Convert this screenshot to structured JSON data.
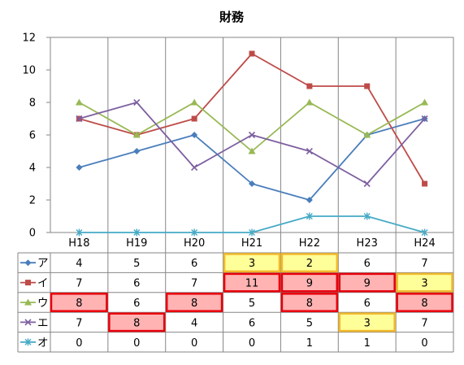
{
  "chart_data": {
    "type": "line",
    "title": "財務",
    "xlabel": "",
    "ylabel": "",
    "categories": [
      "H18",
      "H19",
      "H20",
      "H21",
      "H22",
      "H23",
      "H24"
    ],
    "ylim": [
      0,
      12
    ],
    "yticks": [
      0,
      2,
      4,
      6,
      8,
      10,
      12
    ],
    "grid": "vertical category separators",
    "legend_placement": "data table rows below chart",
    "series": [
      {
        "name": "ア",
        "color": "#4a7ebb",
        "marker": "diamond",
        "values": [
          4,
          5,
          6,
          3,
          2,
          6,
          7
        ]
      },
      {
        "name": "イ",
        "color": "#be4b48",
        "marker": "square",
        "values": [
          7,
          6,
          7,
          11,
          9,
          9,
          3
        ]
      },
      {
        "name": "ウ",
        "color": "#98b954",
        "marker": "triangle",
        "values": [
          8,
          6,
          8,
          5,
          8,
          6,
          8
        ]
      },
      {
        "name": "エ",
        "color": "#7d5fa0",
        "marker": "x",
        "values": [
          7,
          8,
          4,
          6,
          5,
          3,
          7
        ]
      },
      {
        "name": "オ",
        "color": "#46aac5",
        "marker": "star",
        "values": [
          0,
          0,
          0,
          0,
          1,
          1,
          0
        ]
      }
    ],
    "highlights": {
      "red_fill": "#ffb3b3",
      "red_border": "#e8000b",
      "yellow_fill": "#ffff99",
      "yellow_border": "#f2b92c",
      "cells": [
        {
          "series": 0,
          "col": 3,
          "kind": "yellow"
        },
        {
          "series": 0,
          "col": 4,
          "kind": "yellow"
        },
        {
          "series": 1,
          "col": 3,
          "kind": "red"
        },
        {
          "series": 1,
          "col": 4,
          "kind": "red"
        },
        {
          "series": 1,
          "col": 5,
          "kind": "red"
        },
        {
          "series": 1,
          "col": 6,
          "kind": "yellow"
        },
        {
          "series": 2,
          "col": 0,
          "kind": "red"
        },
        {
          "series": 2,
          "col": 2,
          "kind": "red"
        },
        {
          "series": 2,
          "col": 4,
          "kind": "red"
        },
        {
          "series": 2,
          "col": 6,
          "kind": "red"
        },
        {
          "series": 3,
          "col": 1,
          "kind": "red"
        },
        {
          "series": 3,
          "col": 5,
          "kind": "yellow"
        }
      ]
    }
  }
}
